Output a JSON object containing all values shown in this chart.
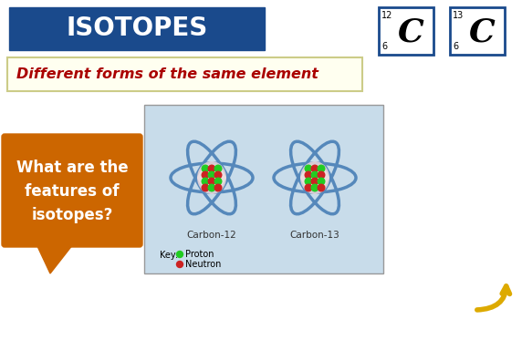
{
  "title": "ISOTOPES",
  "title_bg": "#1a4a8c",
  "title_fg": "#ffffff",
  "subtitle": "Different forms of the same element",
  "subtitle_bg": "#fffff0",
  "subtitle_fg": "#aa0000",
  "subtitle_border": "#cccc88",
  "question_text": "What are the\nfeatures of\nisotopes?",
  "question_bg": "#cc6600",
  "question_fg": "#ffffff",
  "atom_box_bg_top": "#c8dcea",
  "atom_box_bg_bot": "#d8e8f0",
  "atom_box_border": "#999999",
  "atom1_label": "Carbon-12",
  "atom2_label": "Carbon-13",
  "key_label": "Key:",
  "key_proton_label": "Proton",
  "key_neutron_label": "Neutron",
  "proton_color": "#22cc22",
  "neutron_color": "#cc2222",
  "orbit_color": "#5588bb",
  "nucleus_bg": "#f5dddd",
  "element_symbol": "C",
  "element1_mass": "12",
  "element1_atomic": "6",
  "element2_mass": "13",
  "element2_atomic": "6",
  "card_border": "#1a4a8c",
  "bg_color": "#ffffff",
  "arrow_color": "#ddaa00"
}
